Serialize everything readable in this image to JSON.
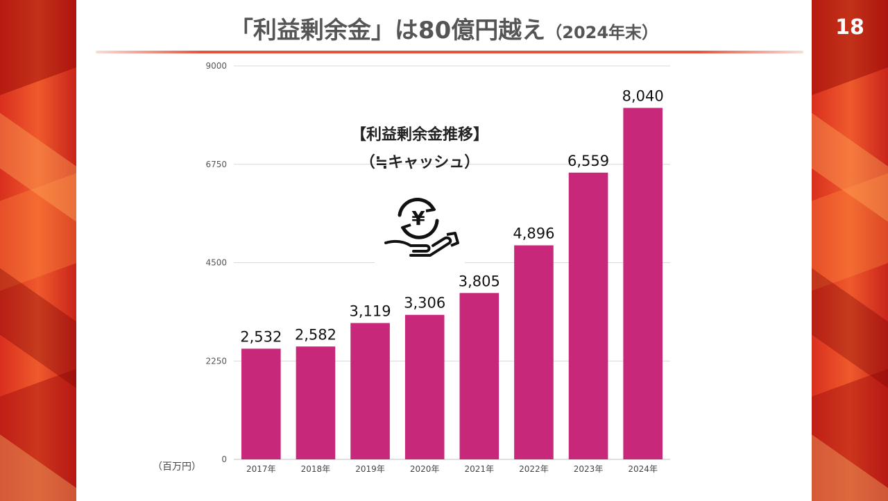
{
  "page": {
    "number": "18"
  },
  "header": {
    "title": "「利益剰余金」は80億円越え",
    "subtitle": "（2024年末）"
  },
  "annotation": {
    "line1": "【利益剰余金推移】",
    "line2": "（≒キャッシュ）",
    "icon": "yen-hand-icon"
  },
  "colors": {
    "bar": "#c8287a",
    "accent": "#e2543c",
    "grid": "#d9d9d9"
  },
  "chart_data": {
    "type": "bar",
    "title": "",
    "xlabel": "",
    "ylabel": "",
    "unit_label": "（百万円）",
    "categories": [
      "2017年",
      "2018年",
      "2019年",
      "2020年",
      "2021年",
      "2022年",
      "2023年",
      "2024年"
    ],
    "values": [
      2532,
      2582,
      3119,
      3306,
      3805,
      4896,
      6559,
      8040
    ],
    "value_labels": [
      "2,532",
      "2,582",
      "3,119",
      "3,306",
      "3,805",
      "4,896",
      "6,559",
      "8,040"
    ],
    "ylim": [
      0,
      9000
    ],
    "yticks": [
      0,
      2250,
      4500,
      6750,
      9000
    ],
    "ytick_labels": [
      "0",
      "2250",
      "4500",
      "6750",
      "9000"
    ],
    "grid": true,
    "legend": "none"
  }
}
